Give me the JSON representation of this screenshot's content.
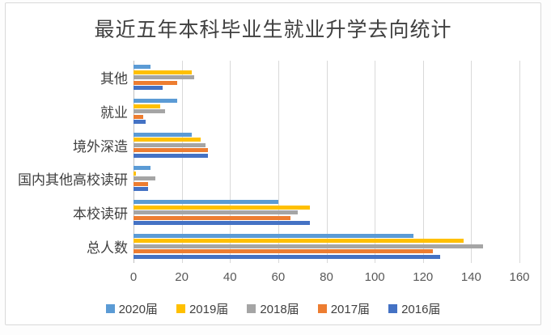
{
  "chart_data": {
    "type": "bar",
    "orientation": "horizontal",
    "title": "最近五年本科毕业生就业升学去向统计",
    "categories_top_to_bottom": [
      "其他",
      "就业",
      "境外深造",
      "国内其他高校读研",
      "本校读研",
      "总人数"
    ],
    "series": [
      {
        "name": "2020届",
        "color": "#5B9BD5",
        "values": [
          7,
          18,
          24,
          7,
          60,
          116
        ]
      },
      {
        "name": "2019届",
        "color": "#FFC000",
        "values": [
          24,
          11,
          28,
          1,
          73,
          137
        ]
      },
      {
        "name": "2018届",
        "color": "#A5A5A5",
        "values": [
          25,
          13,
          30,
          9,
          68,
          145
        ]
      },
      {
        "name": "2017届",
        "color": "#ED7D31",
        "values": [
          18,
          4,
          31,
          6,
          65,
          124
        ]
      },
      {
        "name": "2016届",
        "color": "#4472C4",
        "values": [
          12,
          5,
          31,
          6,
          73,
          127
        ]
      }
    ],
    "x_axis": {
      "min": 0,
      "max": 160,
      "tick_step": 20,
      "tick_labels": [
        "0",
        "20",
        "40",
        "60",
        "80",
        "100",
        "120",
        "140",
        "160"
      ]
    },
    "legend": {
      "position": "bottom",
      "entries": [
        "2020届",
        "2019届",
        "2018届",
        "2017届",
        "2016届"
      ]
    },
    "grid": "vertical",
    "colors": {
      "gridline": "#d9d9d9",
      "axis_line": "#bfbfbf",
      "title_text": "#404040",
      "axis_text": "#595959"
    }
  }
}
